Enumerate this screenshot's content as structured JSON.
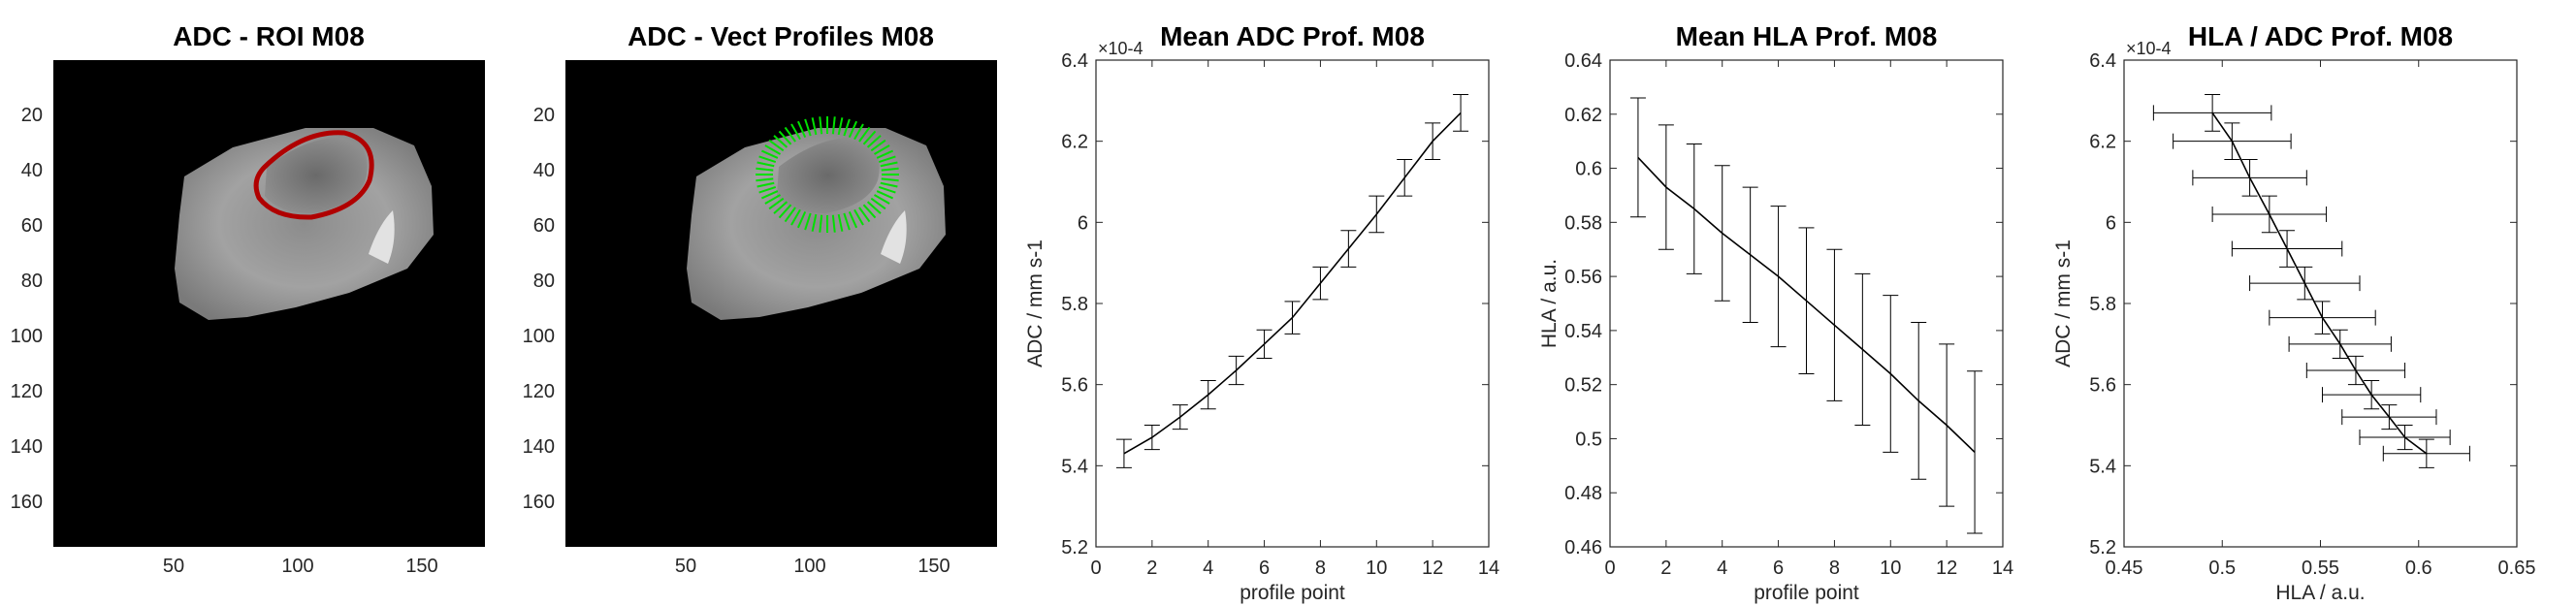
{
  "colors": {
    "roi_outline": "#b00000",
    "vector_profiles": "#00e000",
    "line": "#000000",
    "axes": "#262626"
  },
  "chart_data": [
    {
      "type": "heatmap",
      "title": "ADC - ROI M08",
      "xticks": [
        "50",
        "100",
        "150"
      ],
      "yticks": [
        "20",
        "40",
        "60",
        "80",
        "100",
        "120",
        "140",
        "160"
      ],
      "xlim": [
        1,
        175
      ],
      "ylim": [
        1,
        175
      ],
      "overlay": "roi-outline"
    },
    {
      "type": "heatmap",
      "title": "ADC - Vect Profiles M08",
      "xticks": [
        "50",
        "100",
        "150"
      ],
      "yticks": [
        "20",
        "40",
        "60",
        "80",
        "100",
        "120",
        "140",
        "160"
      ],
      "xlim": [
        1,
        175
      ],
      "ylim": [
        1,
        175
      ],
      "overlay": "vector-profiles"
    },
    {
      "type": "line",
      "title": "Mean ADC Prof. M08",
      "xlabel": "profile point",
      "ylabel": "ADC / mm s-1",
      "yexponent": "×10-4",
      "xlim": [
        0,
        14
      ],
      "ylim": [
        5.2,
        6.4
      ],
      "xticks": [
        "0",
        "2",
        "4",
        "6",
        "8",
        "10",
        "12",
        "14"
      ],
      "yticks": [
        "5.2",
        "5.4",
        "5.6",
        "5.8",
        "6",
        "6.2",
        "6.4"
      ],
      "x": [
        1,
        2,
        3,
        4,
        5,
        6,
        7,
        8,
        9,
        10,
        11,
        12,
        13
      ],
      "y": [
        5.43,
        5.47,
        5.52,
        5.575,
        5.635,
        5.7,
        5.765,
        5.85,
        5.935,
        6.02,
        6.11,
        6.2,
        6.27
      ],
      "yerr": [
        0.035,
        0.03,
        0.03,
        0.035,
        0.035,
        0.035,
        0.04,
        0.04,
        0.045,
        0.045,
        0.045,
        0.045,
        0.045
      ]
    },
    {
      "type": "line",
      "title": "Mean HLA Prof. M08",
      "xlabel": "profile point",
      "ylabel": "HLA / a.u.",
      "xlim": [
        0,
        14
      ],
      "ylim": [
        0.46,
        0.64
      ],
      "xticks": [
        "0",
        "2",
        "4",
        "6",
        "8",
        "10",
        "12",
        "14"
      ],
      "yticks": [
        "0.46",
        "0.48",
        "0.5",
        "0.52",
        "0.54",
        "0.56",
        "0.58",
        "0.6",
        "0.62",
        "0.64"
      ],
      "x": [
        1,
        2,
        3,
        4,
        5,
        6,
        7,
        8,
        9,
        10,
        11,
        12,
        13
      ],
      "y": [
        0.604,
        0.593,
        0.585,
        0.576,
        0.568,
        0.56,
        0.551,
        0.542,
        0.533,
        0.524,
        0.514,
        0.505,
        0.495
      ],
      "yerr": [
        0.022,
        0.023,
        0.024,
        0.025,
        0.025,
        0.026,
        0.027,
        0.028,
        0.028,
        0.029,
        0.029,
        0.03,
        0.03
      ]
    },
    {
      "type": "line",
      "title": "HLA / ADC Prof. M08",
      "xlabel": "HLA / a.u.",
      "ylabel": "ADC / mm s-1",
      "yexponent": "×10-4",
      "xlim": [
        0.45,
        0.65
      ],
      "ylim": [
        5.2,
        6.4
      ],
      "xticks": [
        "0.45",
        "0.5",
        "0.55",
        "0.6",
        "0.65"
      ],
      "yticks": [
        "5.2",
        "5.4",
        "5.6",
        "5.8",
        "6",
        "6.2",
        "6.4"
      ],
      "x": [
        0.604,
        0.593,
        0.585,
        0.576,
        0.568,
        0.56,
        0.551,
        0.542,
        0.533,
        0.524,
        0.514,
        0.505,
        0.495
      ],
      "y": [
        5.43,
        5.47,
        5.52,
        5.575,
        5.635,
        5.7,
        5.765,
        5.85,
        5.935,
        6.02,
        6.11,
        6.2,
        6.27
      ],
      "xerr": [
        0.022,
        0.023,
        0.024,
        0.025,
        0.025,
        0.026,
        0.027,
        0.028,
        0.028,
        0.029,
        0.029,
        0.03,
        0.03
      ],
      "yerr": [
        0.035,
        0.03,
        0.03,
        0.035,
        0.035,
        0.035,
        0.04,
        0.04,
        0.045,
        0.045,
        0.045,
        0.045,
        0.045
      ]
    }
  ]
}
